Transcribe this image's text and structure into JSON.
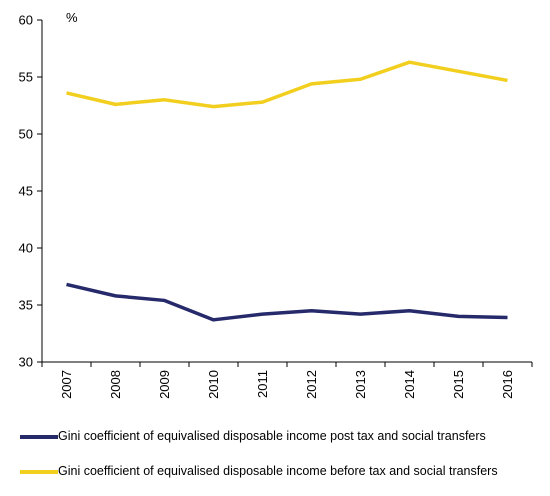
{
  "chart_data": {
    "type": "line",
    "unit_label": "%",
    "x": [
      "2007",
      "2008",
      "2009",
      "2010",
      "2011",
      "2012",
      "2013",
      "2014",
      "2015",
      "2016"
    ],
    "ylim": [
      30,
      60
    ],
    "yticks": [
      30,
      35,
      40,
      45,
      50,
      55,
      60
    ],
    "grid": false,
    "legend_position": "bottom",
    "series": [
      {
        "name": "Gini coefficient of equivalised disposable income post tax and social transfers",
        "color": "#262a6b",
        "values": [
          36.8,
          35.8,
          35.4,
          33.7,
          34.2,
          34.5,
          34.2,
          34.5,
          34.0,
          33.9
        ]
      },
      {
        "name": "Gini coefficient of equivalised disposable income before tax and social transfers",
        "color": "#f2cf1f",
        "values": [
          53.6,
          52.6,
          53.0,
          52.4,
          52.8,
          54.4,
          54.8,
          56.3,
          55.5,
          54.7
        ]
      }
    ]
  }
}
